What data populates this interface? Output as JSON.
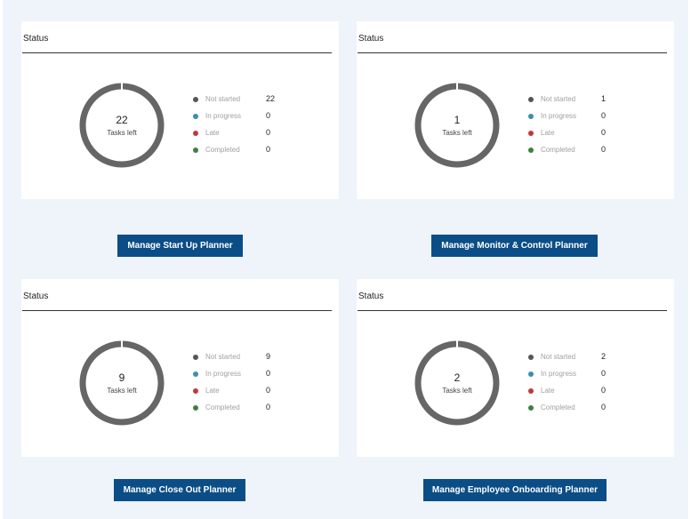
{
  "colors": {
    "not_started": "#555555",
    "in_progress": "#3a8fb0",
    "late": "#c0393b",
    "completed": "#3f7f3f",
    "button": "#0b4d86",
    "ring": "#666666"
  },
  "cards": [
    {
      "title": "Status",
      "tasks_left": "22",
      "tasks_left_label": "Tasks left",
      "legend": [
        {
          "label": "Not started",
          "value": "22"
        },
        {
          "label": "In progress",
          "value": "0"
        },
        {
          "label": "Late",
          "value": "0"
        },
        {
          "label": "Completed",
          "value": "0"
        }
      ],
      "button": "Manage Start Up Planner"
    },
    {
      "title": "Status",
      "tasks_left": "1",
      "tasks_left_label": "Tasks left",
      "legend": [
        {
          "label": "Not started",
          "value": "1"
        },
        {
          "label": "In progress",
          "value": "0"
        },
        {
          "label": "Late",
          "value": "0"
        },
        {
          "label": "Completed",
          "value": "0"
        }
      ],
      "button": "Manage Monitor & Control Planner"
    },
    {
      "title": "Status",
      "tasks_left": "9",
      "tasks_left_label": "Tasks left",
      "legend": [
        {
          "label": "Not started",
          "value": "9"
        },
        {
          "label": "In progress",
          "value": "0"
        },
        {
          "label": "Late",
          "value": "0"
        },
        {
          "label": "Completed",
          "value": "0"
        }
      ],
      "button": "Manage Close Out Planner"
    },
    {
      "title": "Status",
      "tasks_left": "2",
      "tasks_left_label": "Tasks left",
      "legend": [
        {
          "label": "Not started",
          "value": "2"
        },
        {
          "label": "In progress",
          "value": "0"
        },
        {
          "label": "Late",
          "value": "0"
        },
        {
          "label": "Completed",
          "value": "0"
        }
      ],
      "button": "Manage Employee Onboarding Planner"
    }
  ]
}
